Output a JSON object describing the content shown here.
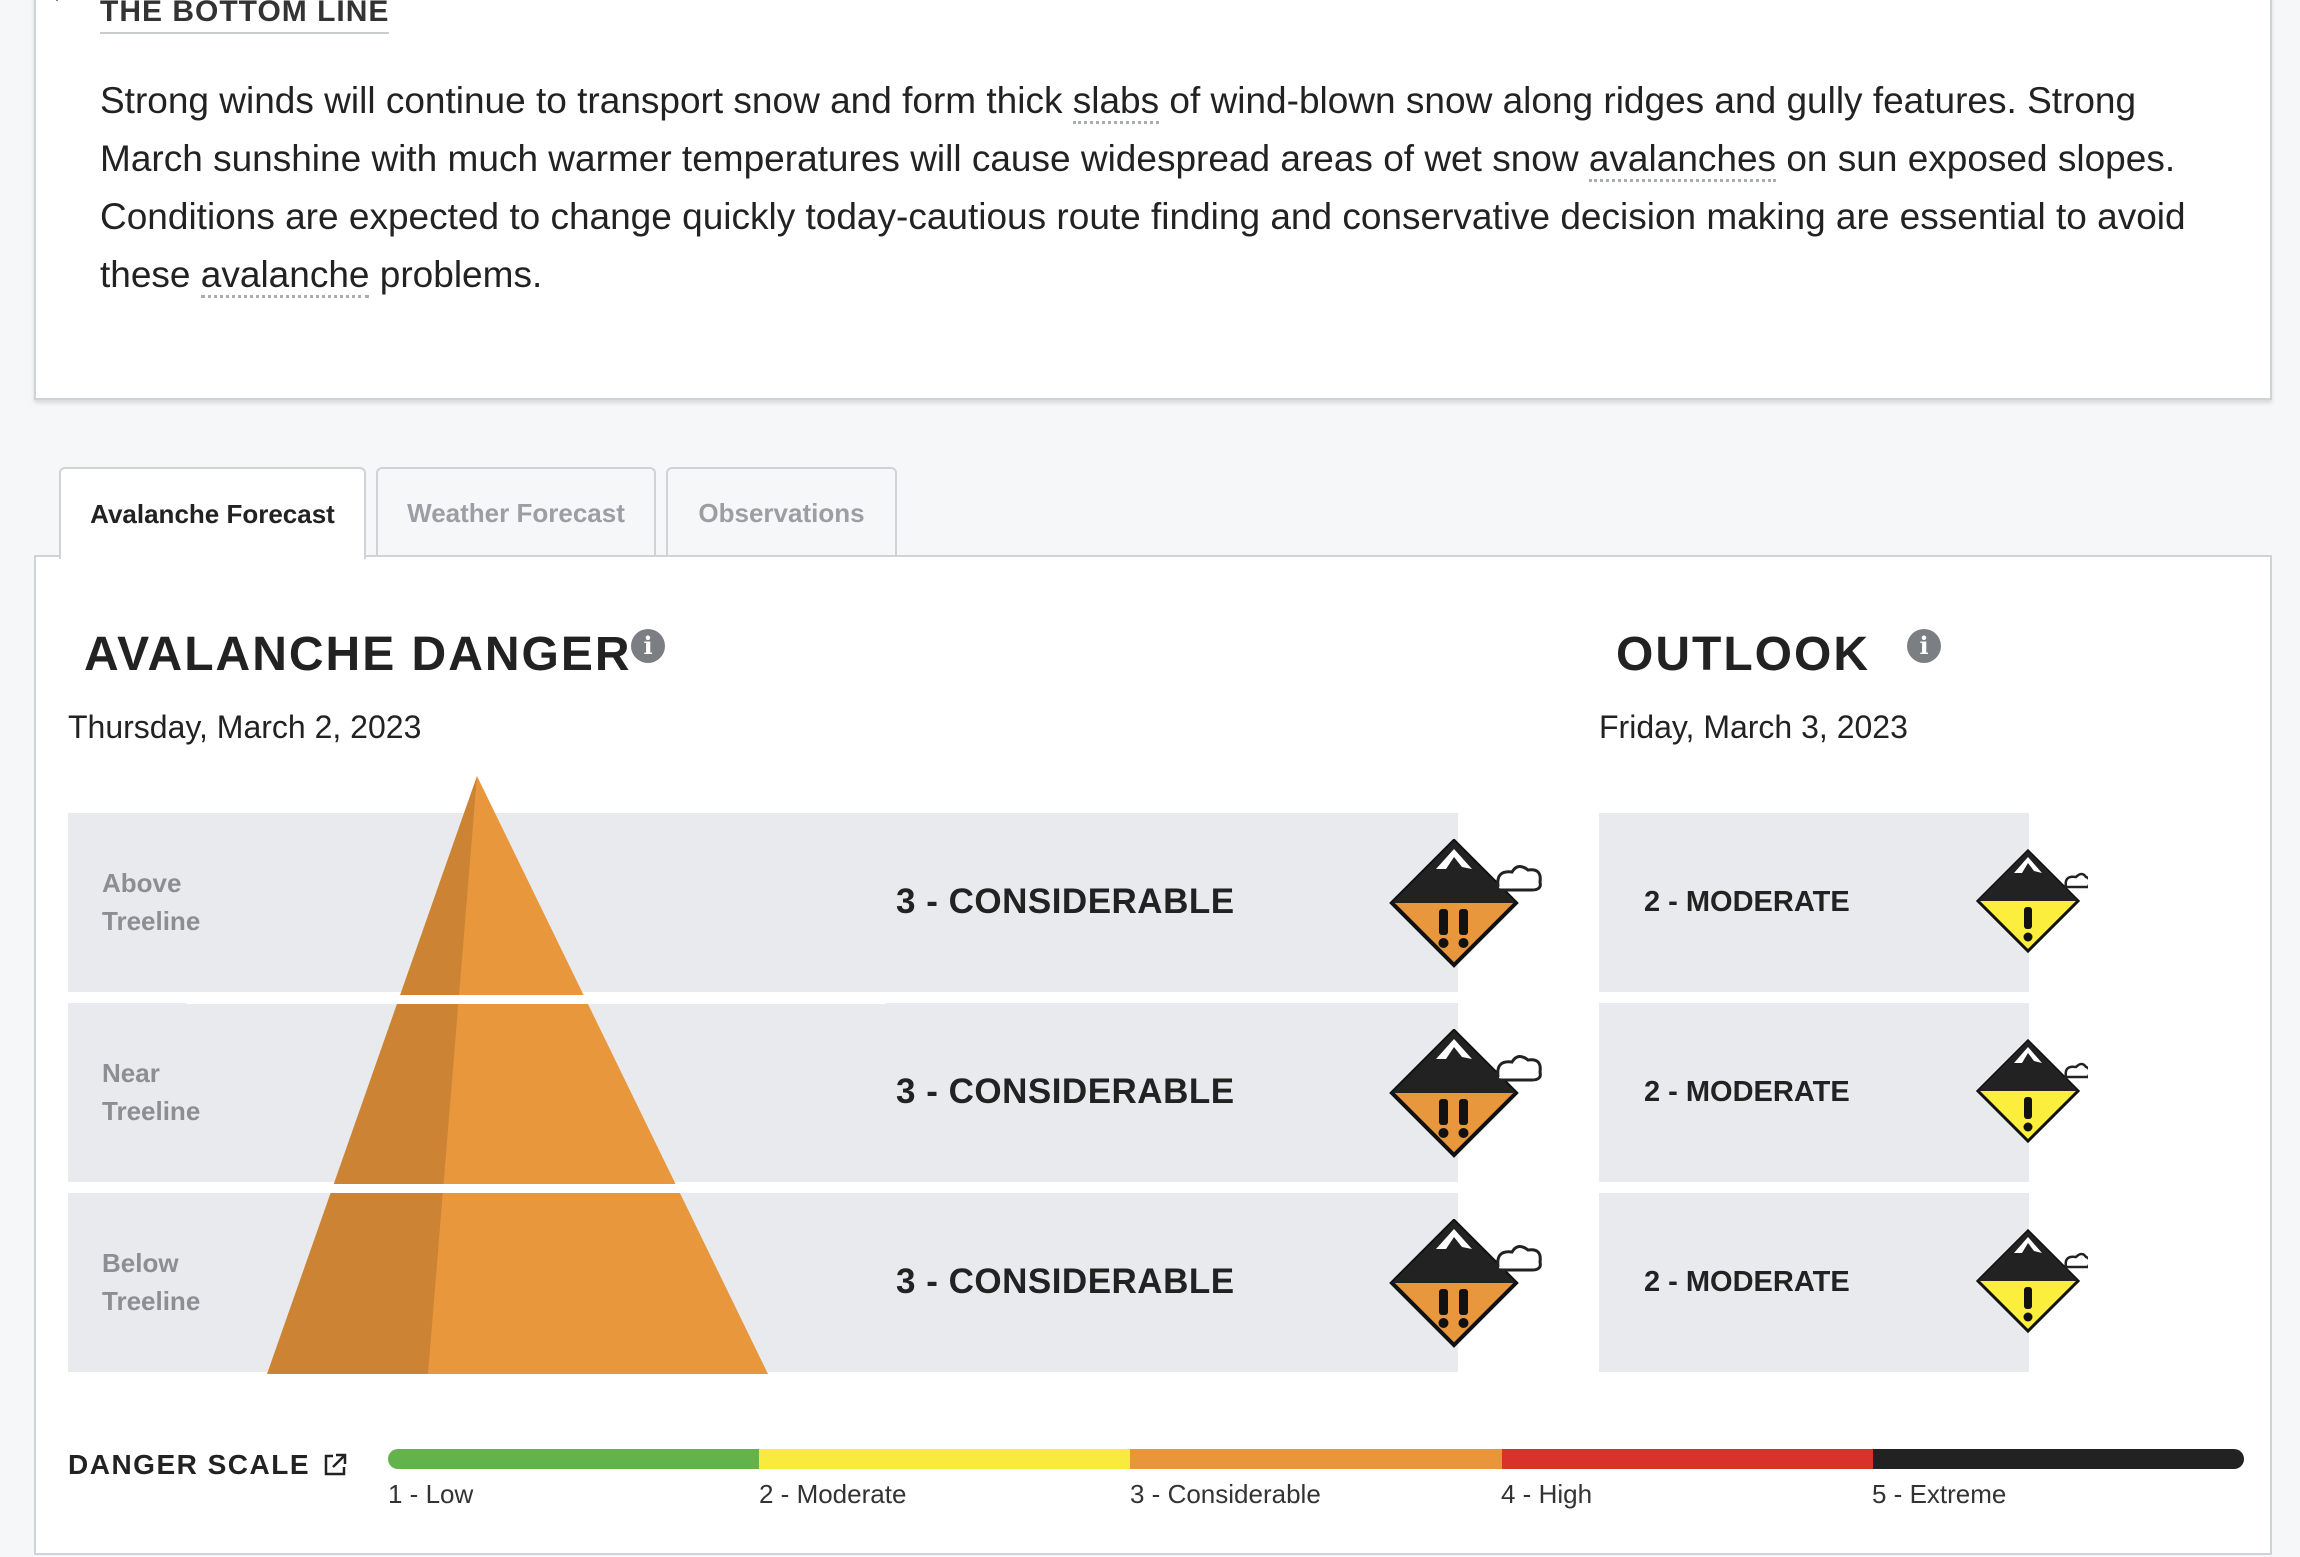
{
  "bottom_line": {
    "heading": "THE BOTTOM LINE",
    "text_parts": [
      "Strong winds will continue to transport snow and form thick ",
      "slabs",
      " of wind-blown snow along ridges and gully features. Strong March sunshine with much warmer temperatures will cause widespread areas of wet snow ",
      "avalanches",
      " on sun exposed slopes.  Conditions are expected to change quickly today-cautious route finding and conservative decision making are essential to avoid these ",
      "avalanche",
      " problems."
    ]
  },
  "tabs": [
    {
      "label": "Avalanche Forecast",
      "active": true
    },
    {
      "label": "Weather Forecast",
      "active": false
    },
    {
      "label": "Observations",
      "active": false
    }
  ],
  "danger": {
    "title": "AVALANCHE DANGER",
    "date": "Thursday, March 2, 2023",
    "color": "#e9973c",
    "rows": [
      {
        "label_1": "Above",
        "label_2": "Treeline",
        "rating": "3 - CONSIDERABLE",
        "icon": "considerable-danger-icon"
      },
      {
        "label_1": "Near",
        "label_2": "Treeline",
        "rating": "3 - CONSIDERABLE",
        "icon": "considerable-danger-icon"
      },
      {
        "label_1": "Below",
        "label_2": "Treeline",
        "rating": "3 - CONSIDERABLE",
        "icon": "considerable-danger-icon"
      }
    ]
  },
  "outlook": {
    "title": "OUTLOOK",
    "date": "Friday, March 3, 2023",
    "color": "#fcee3c",
    "rows": [
      {
        "rating": "2 - MODERATE",
        "icon": "moderate-danger-icon"
      },
      {
        "rating": "2 - MODERATE",
        "icon": "moderate-danger-icon"
      },
      {
        "rating": "2 - MODERATE",
        "icon": "moderate-danger-icon"
      }
    ]
  },
  "danger_scale": {
    "title": "DANGER SCALE",
    "levels": [
      {
        "label": "1 - Low",
        "color": "#64b24b"
      },
      {
        "label": "2 - Moderate",
        "color": "#f9ea3e"
      },
      {
        "label": "3 - Considerable",
        "color": "#e8953c"
      },
      {
        "label": "4 - High",
        "color": "#d8322b"
      },
      {
        "label": "5 - Extreme",
        "color": "#222222"
      }
    ]
  }
}
